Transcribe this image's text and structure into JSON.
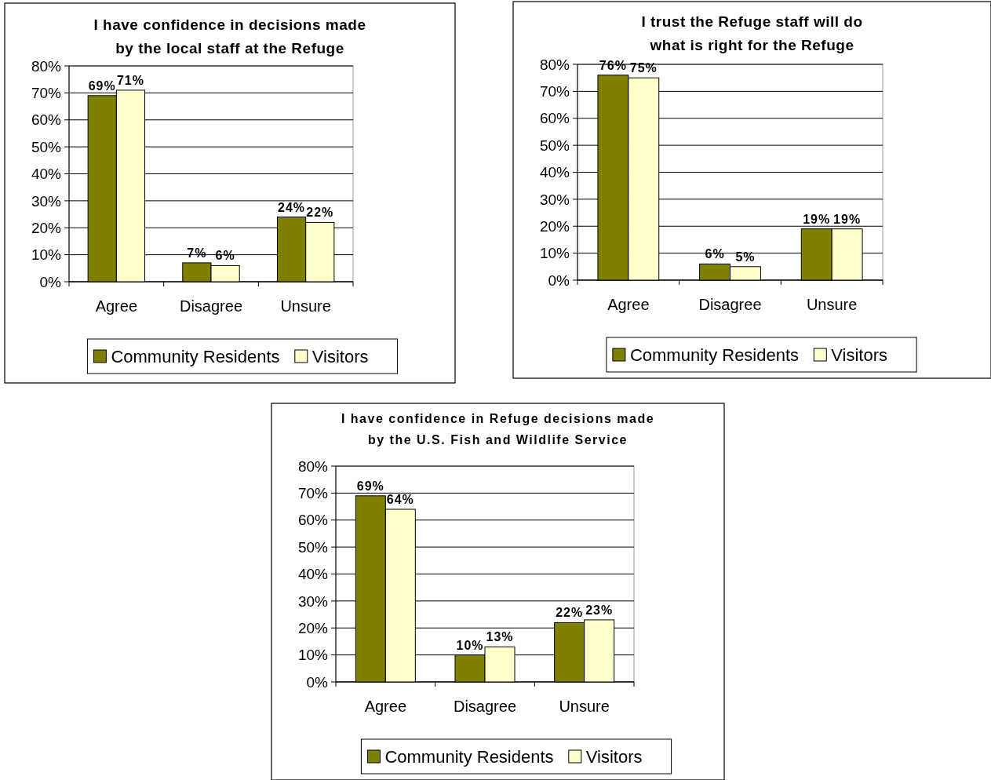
{
  "chart_data": [
    {
      "type": "bar",
      "title": "I have confidence in decisions made by the local staff at the Refuge",
      "categories": [
        "Agree",
        "Disagree",
        "Unsure"
      ],
      "series": [
        {
          "name": "Community Residents",
          "color": "#808000",
          "values": [
            69,
            7,
            24
          ],
          "value_labels": [
            "69%",
            "7%",
            "24%"
          ]
        },
        {
          "name": "Visitors",
          "color": "#ffffcc",
          "values": [
            71,
            6,
            22
          ],
          "value_labels": [
            "71%",
            "6%",
            "22%"
          ]
        }
      ],
      "ylim": [
        0,
        80
      ],
      "yticks": [
        {
          "value": 0,
          "label": "0%"
        },
        {
          "value": 10,
          "label": "10%"
        },
        {
          "value": 20,
          "label": "20%"
        },
        {
          "value": 30,
          "label": "30%"
        },
        {
          "value": 40,
          "label": "40%"
        },
        {
          "value": 50,
          "label": "50%"
        },
        {
          "value": 60,
          "label": "60%"
        },
        {
          "value": 70,
          "label": "70%"
        },
        {
          "value": 80,
          "label": "80%"
        }
      ],
      "grid": "y",
      "legend": "bottom"
    },
    {
      "type": "bar",
      "title": "I trust the Refuge staff will do what is right for the Refuge",
      "categories": [
        "Agree",
        "Disagree",
        "Unsure"
      ],
      "series": [
        {
          "name": "Community Residents",
          "color": "#808000",
          "values": [
            76,
            6,
            19
          ],
          "value_labels": [
            "76%",
            "6%",
            "19%"
          ]
        },
        {
          "name": "Visitors",
          "color": "#ffffcc",
          "values": [
            75,
            5,
            19
          ],
          "value_labels": [
            "75%",
            "5%",
            "19%"
          ]
        }
      ],
      "ylim": [
        0,
        80
      ],
      "yticks": [
        {
          "value": 0,
          "label": "0%"
        },
        {
          "value": 10,
          "label": "10%"
        },
        {
          "value": 20,
          "label": "20%"
        },
        {
          "value": 30,
          "label": "30%"
        },
        {
          "value": 40,
          "label": "40%"
        },
        {
          "value": 50,
          "label": "50%"
        },
        {
          "value": 60,
          "label": "60%"
        },
        {
          "value": 70,
          "label": "70%"
        },
        {
          "value": 80,
          "label": "80%"
        }
      ],
      "grid": "y",
      "legend": "bottom"
    },
    {
      "type": "bar",
      "title": "I have confidence in Refuge decisions made by the U.S. Fish and Wildlife Service",
      "categories": [
        "Agree",
        "Disagree",
        "Unsure"
      ],
      "series": [
        {
          "name": "Community Residents",
          "color": "#808000",
          "values": [
            69,
            10,
            22
          ],
          "value_labels": [
            "69%",
            "10%",
            "22%"
          ]
        },
        {
          "name": "Visitors",
          "color": "#ffffcc",
          "values": [
            64,
            13,
            23
          ],
          "value_labels": [
            "64%",
            "13%",
            "23%"
          ]
        }
      ],
      "ylim": [
        0,
        80
      ],
      "yticks": [
        {
          "value": 0,
          "label": "0%"
        },
        {
          "value": 10,
          "label": "10%"
        },
        {
          "value": 20,
          "label": "20%"
        },
        {
          "value": 30,
          "label": "30%"
        },
        {
          "value": 40,
          "label": "40%"
        },
        {
          "value": 50,
          "label": "50%"
        },
        {
          "value": 60,
          "label": "60%"
        },
        {
          "value": 70,
          "label": "70%"
        },
        {
          "value": 80,
          "label": "80%"
        }
      ],
      "grid": "y",
      "legend": "bottom"
    }
  ]
}
